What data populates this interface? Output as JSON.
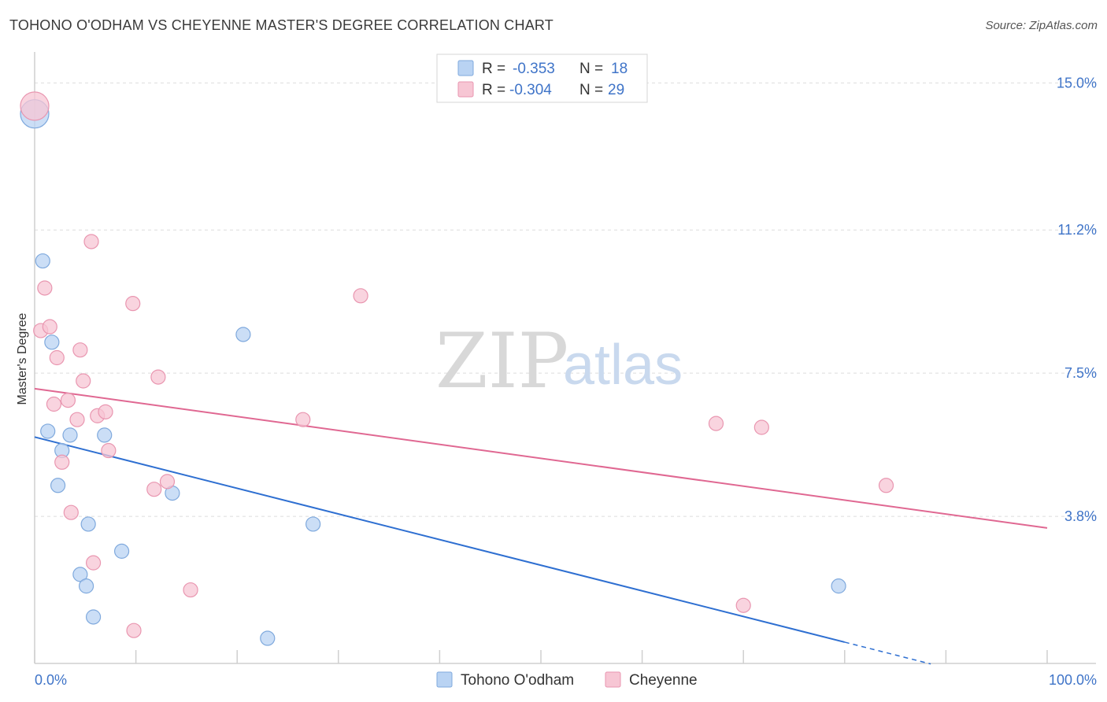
{
  "title": "TOHONO O'ODHAM VS CHEYENNE MASTER'S DEGREE CORRELATION CHART",
  "source": "Source: ZipAtlas.com",
  "watermark": {
    "zip": "ZIP",
    "atlas": "atlas"
  },
  "colors": {
    "blue_fill": "#b9d3f3",
    "blue_stroke": "#7fa9dd",
    "blue_line": "#2e6fd1",
    "pink_fill": "#f7c6d4",
    "pink_stroke": "#e996b0",
    "pink_line": "#e06892",
    "grid": "#dddddd",
    "axis_label": "#3f74c8"
  },
  "legend": {
    "rows": [
      {
        "r_label": "R =",
        "r_value": "-0.353",
        "n_label": "N =",
        "n_value": "18"
      },
      {
        "r_label": "R =",
        "r_value": "-0.304",
        "n_label": "N =",
        "n_value": "29"
      }
    ]
  },
  "bottom_legend": [
    "Tohono O'odham",
    "Cheyenne"
  ],
  "chart_data": {
    "type": "scatter",
    "title": "TOHONO O'ODHAM VS CHEYENNE MASTER'S DEGREE CORRELATION CHART",
    "xlabel": "",
    "ylabel": "Master's Degree",
    "xlim": [
      0,
      100
    ],
    "ylim": [
      0,
      15.8
    ],
    "x_tick_labels": [
      "0.0%",
      "100.0%"
    ],
    "y_ticks": [
      3.8,
      7.5,
      11.2,
      15.0
    ],
    "y_tick_labels": [
      "3.8%",
      "7.5%",
      "11.2%",
      "15.0%"
    ],
    "legend_position": "top-center",
    "series": [
      {
        "name": "Tohono O'odham",
        "points": [
          [
            0.0,
            14.2
          ],
          [
            0.8,
            10.4
          ],
          [
            1.7,
            8.3
          ],
          [
            1.3,
            6.0
          ],
          [
            3.5,
            5.9
          ],
          [
            2.7,
            5.5
          ],
          [
            2.3,
            4.6
          ],
          [
            6.9,
            5.9
          ],
          [
            13.6,
            4.4
          ],
          [
            20.6,
            8.5
          ],
          [
            5.3,
            3.6
          ],
          [
            8.6,
            2.9
          ],
          [
            4.5,
            2.3
          ],
          [
            5.1,
            2.0
          ],
          [
            5.8,
            1.2
          ],
          [
            27.5,
            3.6
          ],
          [
            23.0,
            0.65
          ],
          [
            79.4,
            2.0
          ]
        ],
        "trend": {
          "x1": 0.0,
          "y1": 5.85,
          "x2": 80.0,
          "y2": 0.55,
          "dash_to_x": 88.5
        }
      },
      {
        "name": "Cheyenne",
        "points": [
          [
            0.0,
            14.4
          ],
          [
            5.6,
            10.9
          ],
          [
            1.0,
            9.7
          ],
          [
            9.7,
            9.3
          ],
          [
            32.2,
            9.5
          ],
          [
            0.6,
            8.6
          ],
          [
            1.5,
            8.7
          ],
          [
            4.5,
            8.1
          ],
          [
            2.2,
            7.9
          ],
          [
            4.8,
            7.3
          ],
          [
            12.2,
            7.4
          ],
          [
            1.9,
            6.7
          ],
          [
            3.3,
            6.8
          ],
          [
            6.2,
            6.4
          ],
          [
            7.0,
            6.5
          ],
          [
            4.2,
            6.3
          ],
          [
            26.5,
            6.3
          ],
          [
            67.3,
            6.2
          ],
          [
            71.8,
            6.1
          ],
          [
            7.3,
            5.5
          ],
          [
            2.7,
            5.2
          ],
          [
            13.1,
            4.7
          ],
          [
            11.8,
            4.5
          ],
          [
            84.1,
            4.6
          ],
          [
            3.6,
            3.9
          ],
          [
            5.8,
            2.6
          ],
          [
            15.4,
            1.9
          ],
          [
            70.0,
            1.5
          ],
          [
            9.8,
            0.85
          ]
        ],
        "trend": {
          "x1": 0.0,
          "y1": 7.1,
          "x2": 100.0,
          "y2": 3.5
        }
      }
    ]
  }
}
